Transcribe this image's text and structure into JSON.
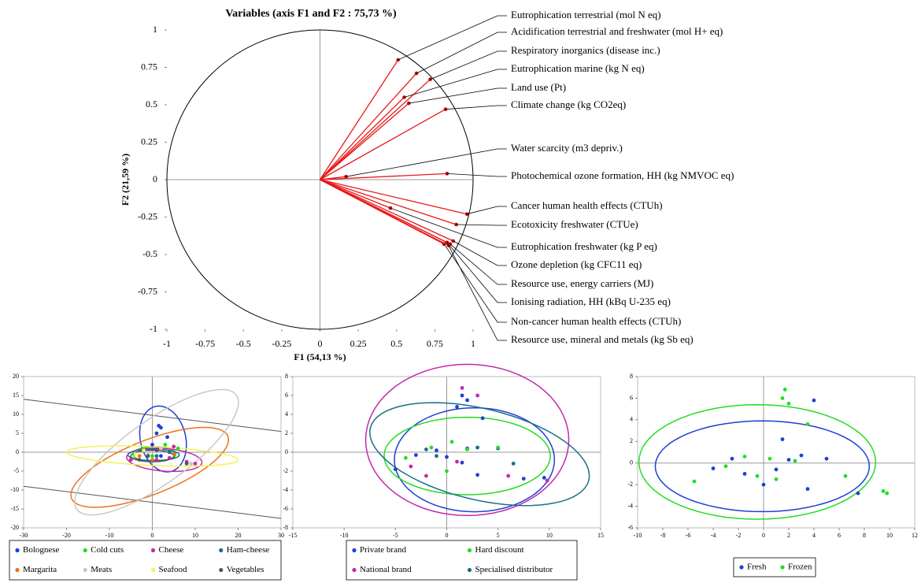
{
  "chart_data": [
    {
      "type": "correlation_circle",
      "title": "Variables (axis F1 and F2 : 75,73 %)",
      "xlabel": "F1 (54,13 %)",
      "ylabel": "F2 (21,59 %)",
      "color": "#e8191a",
      "xlim": [
        -1,
        1
      ],
      "ylim": [
        -1,
        1
      ],
      "xticks": [
        -1,
        -0.75,
        -0.5,
        -0.25,
        0,
        0.25,
        0.5,
        0.75,
        1
      ],
      "yticks": [
        -1,
        -0.75,
        -0.5,
        -0.25,
        0,
        0.25,
        0.5,
        0.75,
        1
      ],
      "variables": [
        {
          "name": "Eutrophication terrestrial (mol N eq)",
          "x": 0.51,
          "y": 0.8
        },
        {
          "name": "Acidification terrestrial and freshwater (mol H+ eq)",
          "x": 0.63,
          "y": 0.71
        },
        {
          "name": "Respiratory inorganics (disease inc.)",
          "x": 0.72,
          "y": 0.67
        },
        {
          "name": "Eutrophication marine (kg N eq)",
          "x": 0.55,
          "y": 0.55
        },
        {
          "name": "Land use (Pt)",
          "x": 0.58,
          "y": 0.51
        },
        {
          "name": "Climate change (kg CO2eq)",
          "x": 0.82,
          "y": 0.47
        },
        {
          "name": "Water scarcity (m3 depriv.)",
          "x": 0.17,
          "y": 0.02
        },
        {
          "name": "Photochemical ozone formation, HH (kg NMVOC eq)",
          "x": 0.83,
          "y": 0.04
        },
        {
          "name": "Cancer human health effects (CTUh)",
          "x": 0.96,
          "y": -0.23
        },
        {
          "name": "Ecotoxicity freshwater (CTUe)",
          "x": 0.89,
          "y": -0.3
        },
        {
          "name": "Eutrophication freshwater (kg P eq)",
          "x": 0.46,
          "y": -0.19
        },
        {
          "name": "Ozone depletion (kg CFC11 eq)",
          "x": 0.87,
          "y": -0.41
        },
        {
          "name": "Resource use, energy carriers (MJ)",
          "x": 0.85,
          "y": -0.43
        },
        {
          "name": "Ionising radiation, HH (kBq U-235 eq)",
          "x": 0.83,
          "y": -0.42
        },
        {
          "name": "Non-cancer human health effects (CTUh)",
          "x": 0.81,
          "y": -0.43
        },
        {
          "name": "Resource use, mineral and metals (kg Sb eq)",
          "x": 0.84,
          "y": -0.44
        }
      ]
    },
    {
      "type": "scatter",
      "xlim": [
        -30,
        30
      ],
      "ylim": [
        -20,
        20
      ],
      "xticks": [
        -30,
        -20,
        -10,
        0,
        10,
        20,
        30
      ],
      "yticks": [
        -20,
        -15,
        -10,
        -5,
        0,
        5,
        10,
        15,
        20
      ],
      "lines": [
        {
          "color": "#555555",
          "x": [
            -30,
            30
          ],
          "y": [
            14,
            5.5
          ]
        },
        {
          "color": "#555555",
          "x": [
            -30,
            30
          ],
          "y": [
            -9,
            -17.5
          ]
        }
      ],
      "series": [
        {
          "name": "Bolognese",
          "color": "#1f3fd6",
          "x": [
            1,
            2,
            1.5,
            3.5,
            0,
            2
          ],
          "y": [
            5,
            6.5,
            7,
            4,
            2,
            -1
          ],
          "ellipse": {
            "cx": 2.5,
            "cy": 3.5,
            "rx": 5.3,
            "ry": 8.8,
            "angle": 10
          }
        },
        {
          "name": "Cold cuts",
          "color": "#22dd22",
          "x": [
            -2,
            3,
            6,
            0,
            -5
          ],
          "y": [
            0.5,
            2,
            1,
            -1,
            -2
          ],
          "ellipse": {
            "cx": 0.5,
            "cy": -0.5,
            "rx": 5,
            "ry": 2,
            "angle": 0
          }
        },
        {
          "name": "Cheese",
          "color": "#c22aa8",
          "x": [
            -5,
            8,
            4,
            10,
            1,
            5
          ],
          "y": [
            -2,
            -2.5,
            -1.5,
            -3,
            -2,
            1.5
          ],
          "ellipse": {
            "cx": 2.8,
            "cy": -2,
            "rx": 8.8,
            "ry": 3,
            "angle": -5
          }
        },
        {
          "name": "Ham-cheese",
          "color": "#1a6f8a",
          "x": [
            -2,
            1,
            4
          ],
          "y": [
            0.5,
            -1,
            0
          ],
          "ellipse": {
            "cx": 0.3,
            "cy": -0.7,
            "rx": 6,
            "ry": 1.5,
            "angle": 0
          }
        },
        {
          "name": "Margarita",
          "color": "#f0701a",
          "x": [
            -3,
            0,
            5
          ],
          "y": [
            -1,
            -2,
            -0.5
          ],
          "ellipse": {
            "cx": -0.6,
            "cy": -4,
            "rx": 20,
            "ry": 7,
            "angle": 25
          }
        },
        {
          "name": "Meats",
          "color": "#c8c8c8",
          "x": [
            -1,
            2,
            9
          ],
          "y": [
            -0.5,
            1,
            -3
          ],
          "ellipse": {
            "cx": 1,
            "cy": 0,
            "rx": 24,
            "ry": 8,
            "angle": 40
          }
        },
        {
          "name": "Seafood",
          "color": "#f2f25a",
          "x": [
            -4,
            -2
          ],
          "y": [
            -0.5,
            0.5
          ],
          "ellipse": {
            "cx": 0,
            "cy": -1,
            "rx": 20,
            "ry": 2.5,
            "angle": -3
          }
        },
        {
          "name": "Vegetables",
          "color": "#555555",
          "x": [
            -1,
            1,
            8,
            -3
          ],
          "y": [
            -1,
            0.5,
            -3,
            -2
          ],
          "ellipse": {
            "cx": 0,
            "cy": -1,
            "rx": 5,
            "ry": 1.5,
            "angle": 0
          }
        }
      ]
    },
    {
      "type": "scatter",
      "xlim": [
        -15,
        15
      ],
      "ylim": [
        -8,
        8
      ],
      "xticks": [
        -15,
        -10,
        -5,
        0,
        5,
        10,
        15
      ],
      "yticks": [
        -8,
        -6,
        -4,
        -2,
        0,
        2,
        4,
        6,
        8
      ],
      "series": [
        {
          "name": "Private brand",
          "color": "#1f3fd6",
          "x": [
            1.5,
            2,
            1,
            3.5,
            9.5,
            7.5,
            -5,
            -1,
            0,
            2,
            3,
            5,
            -3,
            1.5
          ],
          "y": [
            6,
            5.5,
            4.8,
            3.6,
            -2.7,
            -2.8,
            -1.8,
            0.2,
            -0.5,
            0.4,
            -2.4,
            0.4,
            -0.3,
            -1.1
          ],
          "ellipse": {
            "cx": 2.7,
            "cy": -0.8,
            "rx": 7.8,
            "ry": 5.5,
            "angle": 0
          }
        },
        {
          "name": "Hard discount",
          "color": "#22dd22",
          "x": [
            0.5,
            -4,
            0,
            2,
            5,
            -1.5
          ],
          "y": [
            1.1,
            -0.6,
            -2,
            0.3,
            0.5,
            0.5
          ],
          "ellipse": {
            "cx": 2,
            "cy": -0.4,
            "rx": 8.1,
            "ry": 4.1,
            "angle": 0
          }
        },
        {
          "name": "National brand",
          "color": "#c22aa8",
          "x": [
            1.5,
            3,
            9.8,
            6,
            -3.5,
            1,
            -2
          ],
          "y": [
            6.8,
            6,
            -3,
            -2.5,
            -1.5,
            -1,
            -2.5
          ],
          "ellipse": {
            "cx": 2,
            "cy": 1.3,
            "rx": 9.9,
            "ry": 8,
            "angle": 0
          }
        },
        {
          "name": "Specialised distributor",
          "color": "#1a6f8a",
          "x": [
            -1,
            6.5,
            3,
            -2
          ],
          "y": [
            -0.4,
            -1.2,
            0.5,
            0.3
          ],
          "ellipse": {
            "cx": 3.2,
            "cy": -0.2,
            "rx": 11,
            "ry": 4.8,
            "angle": -15
          }
        }
      ]
    },
    {
      "type": "scatter",
      "xlim": [
        -10,
        12
      ],
      "ylim": [
        -6,
        8
      ],
      "xticks": [
        -10,
        -8,
        -6,
        -4,
        -2,
        0,
        2,
        4,
        6,
        8,
        10,
        12
      ],
      "yticks": [
        -6,
        -4,
        -2,
        0,
        2,
        4,
        6,
        8
      ],
      "series": [
        {
          "name": "Fresh",
          "color": "#1f3fd6",
          "x": [
            4,
            7.5,
            5,
            3.5,
            -4,
            -1.5,
            0,
            1.5,
            2,
            -2.5,
            1,
            3
          ],
          "y": [
            5.8,
            -2.8,
            0.4,
            -2.4,
            -0.5,
            -1,
            -2,
            2.2,
            0.3,
            0.4,
            -0.6,
            0.7
          ],
          "ellipse": {
            "cx": -0.1,
            "cy": -0.3,
            "rx": 8.5,
            "ry": 4.2,
            "angle": 0
          }
        },
        {
          "name": "Frozen",
          "color": "#22dd22",
          "x": [
            1.7,
            1.5,
            2,
            3.5,
            9.5,
            9.8,
            6.5,
            -5.5,
            -1.5,
            -3,
            0.5,
            1,
            -0.5,
            2.5
          ],
          "y": [
            6.8,
            6,
            5.5,
            3.6,
            -2.6,
            -2.8,
            -1.2,
            -1.7,
            0.6,
            -0.3,
            0.4,
            -1.5,
            -1.2,
            0.2
          ],
          "ellipse": {
            "cx": -0.5,
            "cy": 0.1,
            "rx": 9.4,
            "ry": 5.3,
            "angle": 0
          }
        }
      ]
    }
  ]
}
